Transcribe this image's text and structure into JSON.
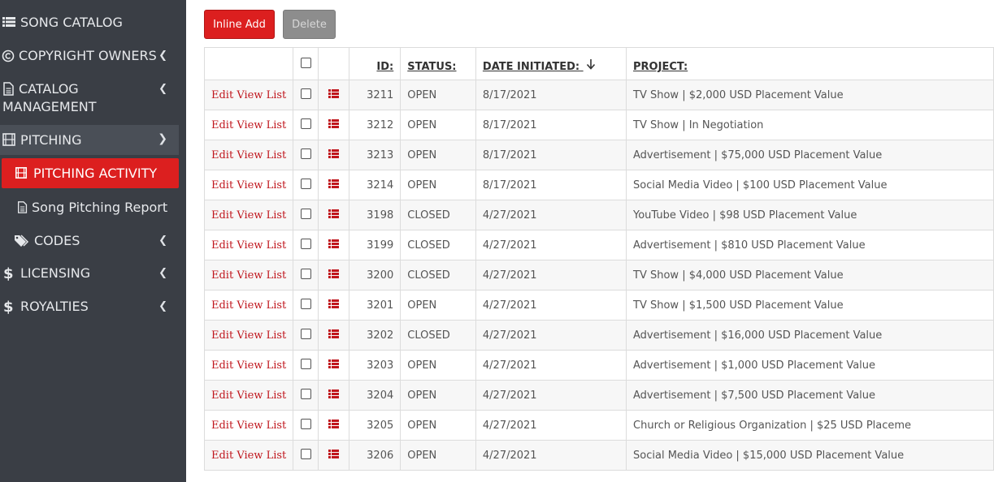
{
  "sidebar": {
    "items": [
      {
        "label": "SONG CATALOG",
        "icon": "list-icon"
      },
      {
        "label": "COPYRIGHT OWNERS",
        "icon": "copyright-icon"
      },
      {
        "label_line1": "CATALOG",
        "label_line2": "MANAGEMENT",
        "icon": "file-icon"
      },
      {
        "label": "PITCHING",
        "icon": "film-icon"
      },
      {
        "label": "PITCHING ACTIVITY",
        "icon": "film-icon"
      },
      {
        "label": "Song Pitching Report",
        "icon": "file-icon"
      },
      {
        "label": "CODES",
        "icon": "tags-icon"
      },
      {
        "label": "LICENSING",
        "icon": "dollar-icon"
      },
      {
        "label": "ROYALTIES",
        "icon": "dollar-icon"
      }
    ]
  },
  "toolbar": {
    "inline_add": "Inline Add",
    "delete": "Delete"
  },
  "table": {
    "headers": {
      "id": "ID:",
      "status": "STATUS:",
      "date": "DATE INITIATED:",
      "project": "PROJECT:"
    },
    "row_links": "Edit View List",
    "rows": [
      {
        "id": "3211",
        "status": "OPEN",
        "date": "8/17/2021",
        "project": "TV Show | $2,000 USD Placement Value"
      },
      {
        "id": "3212",
        "status": "OPEN",
        "date": "8/17/2021",
        "project": "TV Show | In Negotiation"
      },
      {
        "id": "3213",
        "status": "OPEN",
        "date": "8/17/2021",
        "project": "Advertisement | $75,000 USD Placement Value"
      },
      {
        "id": "3214",
        "status": "OPEN",
        "date": "8/17/2021",
        "project": "Social Media Video | $100 USD Placement Value"
      },
      {
        "id": "3198",
        "status": "CLOSED",
        "date": "4/27/2021",
        "project": "YouTube Video | $98 USD Placement Value"
      },
      {
        "id": "3199",
        "status": "CLOSED",
        "date": "4/27/2021",
        "project": "Advertisement | $810 USD Placement Value"
      },
      {
        "id": "3200",
        "status": "CLOSED",
        "date": "4/27/2021",
        "project": "TV Show | $4,000 USD Placement Value"
      },
      {
        "id": "3201",
        "status": "OPEN",
        "date": "4/27/2021",
        "project": "TV Show | $1,500 USD Placement Value"
      },
      {
        "id": "3202",
        "status": "CLOSED",
        "date": "4/27/2021",
        "project": "Advertisement | $16,000 USD Placement Value"
      },
      {
        "id": "3203",
        "status": "OPEN",
        "date": "4/27/2021",
        "project": "Advertisement | $1,000 USD Placement Value"
      },
      {
        "id": "3204",
        "status": "OPEN",
        "date": "4/27/2021",
        "project": "Advertisement | $7,500 USD Placement Value"
      },
      {
        "id": "3205",
        "status": "OPEN",
        "date": "4/27/2021",
        "project": "Church or Religious Organization | $25 USD Placeme"
      },
      {
        "id": "3206",
        "status": "OPEN",
        "date": "4/27/2021",
        "project": "Social Media Video | $15,000 USD Placement Value"
      }
    ]
  },
  "colors": {
    "sidebar_bg": "#3a3e45",
    "accent": "#dc1f1f"
  }
}
